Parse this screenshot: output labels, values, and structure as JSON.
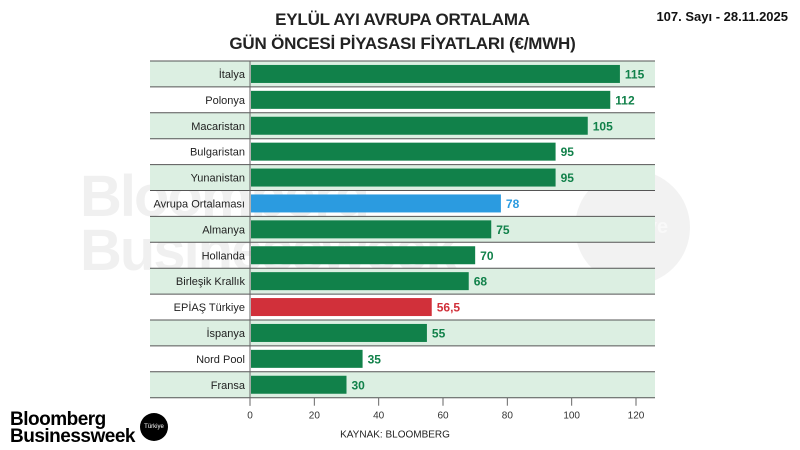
{
  "header": {
    "issue": "107. Sayı - 28.11.2025"
  },
  "watermark": {
    "text_line1": "Bloomberg",
    "text_line2": "Businessweek",
    "badge": "Türkiye"
  },
  "footer": {
    "logo_line1": "Bloomberg",
    "logo_line2": "Businessweek",
    "logo_badge": "Türkiye"
  },
  "colors": {
    "default": "#11814a",
    "average": "#2b9be0",
    "turkey": "#d1303a",
    "band": "#dcefe2"
  },
  "chart_data": {
    "type": "bar",
    "orientation": "horizontal",
    "title_line1": "EYLÜL AYI AVRUPA ORTALAMA",
    "title_line2": "GÜN ÖNCESİ PİYASASI FİYATLARI (€/MWH)",
    "categories": [
      "İtalya",
      "Polonya",
      "Macaristan",
      "Bulgaristan",
      "Yunanistan",
      "Avrupa Ortalaması",
      "Almanya",
      "Hollanda",
      "Birleşik Krallık",
      "EPİAŞ Türkiye",
      "İspanya",
      "Nord Pool",
      "Fransa"
    ],
    "values": [
      115,
      112,
      105,
      95,
      95,
      78,
      75,
      70,
      68,
      56.5,
      55,
      35,
      30
    ],
    "value_labels": [
      "115",
      "112",
      "105",
      "95",
      "95",
      "78",
      "75",
      "70",
      "68",
      "56,5",
      "55",
      "35",
      "30"
    ],
    "highlight": {
      "Avrupa Ortalaması": "average",
      "EPİAŞ Türkiye": "turkey"
    },
    "xlim": [
      0,
      120
    ],
    "xticks": [
      "0",
      "20",
      "40",
      "60",
      "80",
      "100",
      "120"
    ],
    "source": "KAYNAK: BLOOMBERG",
    "grid": false,
    "legend": "none"
  }
}
